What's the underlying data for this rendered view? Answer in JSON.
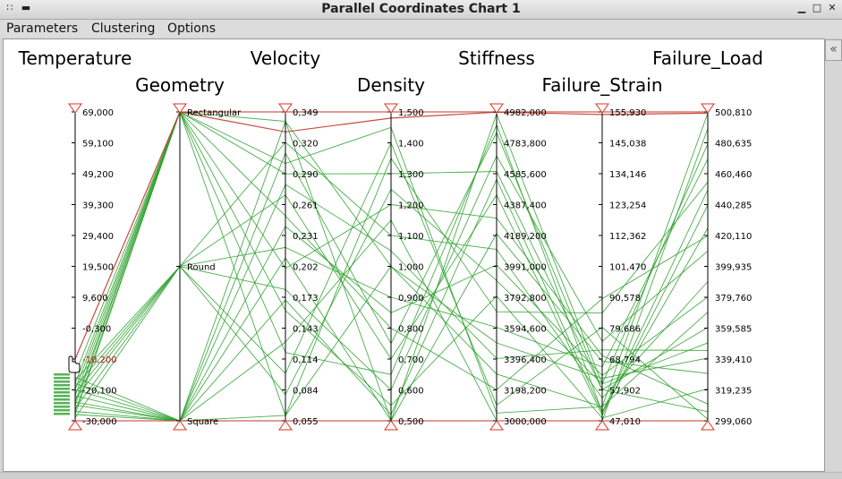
{
  "window": {
    "title": "Parallel Coordinates Chart 1",
    "menu_icon": "grip-dots-icon",
    "minimize_icon": "minimize-icon",
    "maximize_icon": "maximize-icon",
    "close_icon": "close-icon",
    "collapse_icon": "double-chevron-left-icon"
  },
  "menubar": {
    "parameters": "Parameters",
    "clustering": "Clustering",
    "options": "Options"
  },
  "colors": {
    "line": "#2ca02c",
    "selected": "#c0392b",
    "axis": "#000000",
    "marker": "#e03020"
  },
  "chart_data": {
    "type": "parallel-coordinates",
    "axes": [
      {
        "name": "Temperature",
        "ticks": [
          "69,000",
          "59,100",
          "49,200",
          "39,300",
          "29,400",
          "19,500",
          "9,600",
          "-0,300",
          "-10,200",
          "-20,100",
          "-30,000"
        ],
        "range": [
          -30,
          69
        ]
      },
      {
        "name": "Geometry",
        "ticks": [
          "Rectangular",
          "Round",
          "Square"
        ]
      },
      {
        "name": "Velocity",
        "ticks": [
          "0,349",
          "0,320",
          "0,290",
          "0,261",
          "0,231",
          "0,202",
          "0,173",
          "0,143",
          "0,114",
          "0,084",
          "0,055"
        ],
        "range": [
          0.055,
          0.349
        ]
      },
      {
        "name": "Density",
        "ticks": [
          "1,500",
          "1,400",
          "1,300",
          "1,200",
          "1,100",
          "1,000",
          "0,900",
          "0,800",
          "0,700",
          "0,600",
          "0,500"
        ],
        "range": [
          0.5,
          1.5
        ]
      },
      {
        "name": "Stiffness",
        "ticks": [
          "4982,000",
          "4783,800",
          "4585,600",
          "4387,400",
          "4189,200",
          "3991,000",
          "3792,800",
          "3594,600",
          "3396,400",
          "3198,200",
          "3000,000"
        ],
        "range": [
          3000,
          4982
        ]
      },
      {
        "name": "Failure_Strain",
        "ticks": [
          "155,930",
          "145,038",
          "134,146",
          "123,254",
          "112,362",
          "101,470",
          "90,578",
          "79,686",
          "68,794",
          "57,902",
          "47,010"
        ],
        "range": [
          47.01,
          155.93
        ]
      },
      {
        "name": "Failure_Load",
        "ticks": [
          "500,810",
          "480,635",
          "460,460",
          "440,285",
          "420,110",
          "399,935",
          "379,760",
          "359,585",
          "339,410",
          "319,235",
          "299,060"
        ],
        "range": [
          299.06,
          500.81
        ]
      }
    ],
    "highlighted_value": "-10,200",
    "records": [
      [
        -18,
        0,
        0.34,
        0.5,
        4970,
        60,
        480
      ],
      [
        -22,
        0,
        0.3,
        1.45,
        3050,
        52,
        500
      ],
      [
        -25,
        0,
        0.2,
        1.2,
        4300,
        70,
        310
      ],
      [
        -20,
        0,
        0.12,
        0.65,
        4900,
        50,
        450
      ],
      [
        -27,
        0,
        0.06,
        1.0,
        3500,
        62,
        340
      ],
      [
        -15,
        0,
        0.25,
        0.8,
        3200,
        90,
        420
      ],
      [
        -28,
        0,
        0.29,
        1.3,
        4600,
        58,
        360
      ],
      [
        -24,
        0,
        0.16,
        0.55,
        3800,
        48,
        320
      ],
      [
        -19,
        1,
        0.32,
        1.1,
        4100,
        55,
        390
      ],
      [
        -23,
        1,
        0.22,
        0.9,
        3600,
        66,
        470
      ],
      [
        -26,
        1,
        0.1,
        1.4,
        3100,
        80,
        300
      ],
      [
        -21,
        1,
        0.27,
        0.7,
        4450,
        49,
        440
      ],
      [
        -17,
        1,
        0.08,
        1.25,
        3900,
        60,
        350
      ],
      [
        -29,
        1,
        0.18,
        0.6,
        4700,
        75,
        410
      ],
      [
        -16,
        2,
        0.34,
        1.0,
        3300,
        52,
        370
      ],
      [
        -22,
        2,
        0.21,
        0.5,
        4200,
        68,
        330
      ],
      [
        -27,
        2,
        0.13,
        1.15,
        3000,
        47,
        490
      ],
      [
        -20,
        2,
        0.31,
        0.75,
        4850,
        58,
        305
      ],
      [
        -25,
        2,
        0.06,
        1.35,
        3700,
        85,
        455
      ],
      [
        -18,
        2,
        0.24,
        0.85,
        4000,
        63,
        380
      ],
      [
        -28,
        2,
        0.17,
        0.52,
        4550,
        50,
        425
      ],
      [
        -24,
        2,
        0.28,
        1.05,
        3400,
        72,
        345
      ],
      [
        -10.2,
        0,
        0.33,
        1.48,
        4980,
        155,
        500
      ]
    ]
  }
}
